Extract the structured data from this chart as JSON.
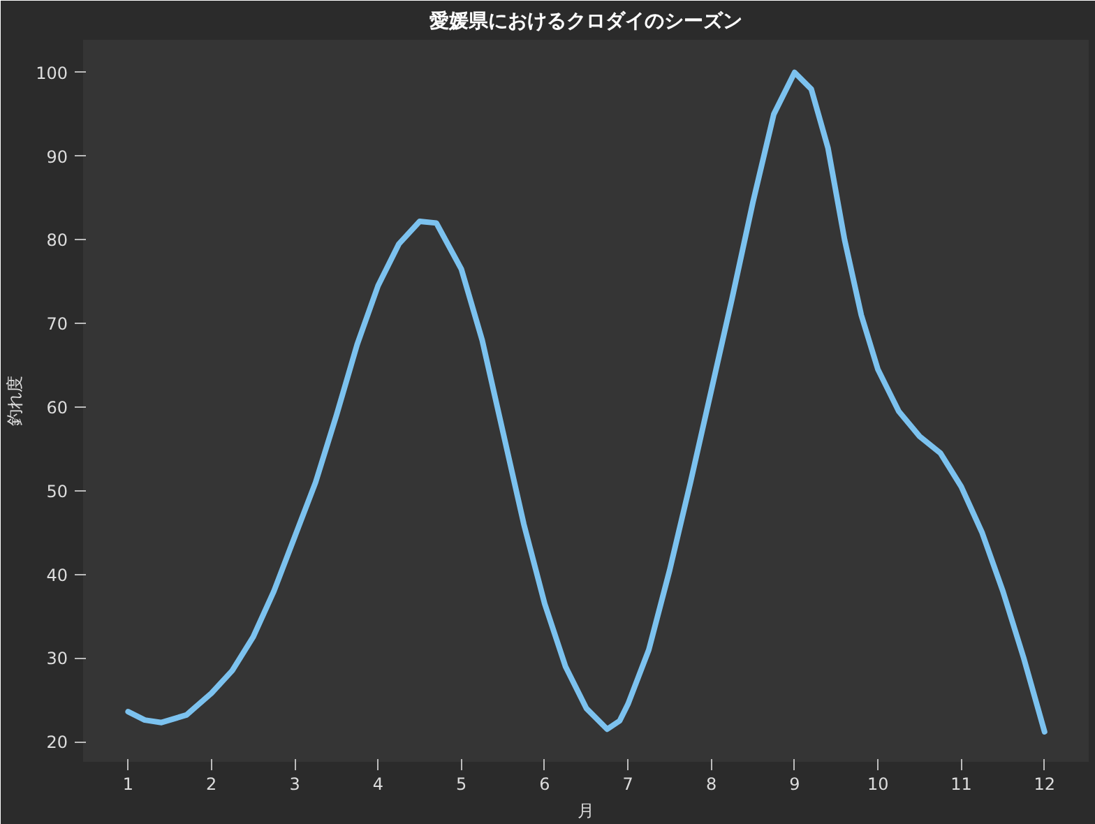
{
  "chart_data": {
    "type": "line",
    "title": "愛媛県におけるクロダイのシーズン",
    "xlabel": "月",
    "ylabel": "釣れ度",
    "x": [
      1,
      1.2,
      1.4,
      1.7,
      2,
      2.25,
      2.5,
      2.75,
      3,
      3.25,
      3.5,
      3.75,
      4,
      4.25,
      4.5,
      4.7,
      5,
      5.25,
      5.5,
      5.75,
      6,
      6.25,
      6.5,
      6.75,
      6.9,
      7,
      7.25,
      7.5,
      7.75,
      8,
      8.25,
      8.5,
      8.75,
      9,
      9.2,
      9.4,
      9.6,
      9.8,
      10,
      10.25,
      10.5,
      10.75,
      11,
      11.25,
      11.5,
      11.75,
      12
    ],
    "series": [
      {
        "color": "#7cc2ef",
        "values": [
          23.6,
          22.6,
          22.3,
          23.2,
          25.8,
          28.5,
          32.5,
          38,
          44.5,
          51,
          59,
          67.5,
          74.5,
          79.5,
          82.2,
          82,
          76.5,
          68,
          57,
          46,
          36.5,
          29,
          24,
          21.5,
          22.5,
          24.5,
          31,
          40.5,
          51,
          62,
          73,
          84.5,
          95,
          100,
          98,
          91,
          80,
          71,
          64.5,
          59.5,
          56.5,
          54.5,
          50.5,
          45,
          38,
          30,
          21.2
        ]
      }
    ],
    "xlim": [
      0.46,
      12.53
    ],
    "ylim": [
      17.6,
      103.9
    ],
    "xticks": [
      1,
      2,
      3,
      4,
      5,
      6,
      7,
      8,
      9,
      10,
      11,
      12
    ],
    "yticks": [
      20,
      30,
      40,
      50,
      60,
      70,
      80,
      90,
      100
    ],
    "grid": false,
    "line_style": "solid",
    "marker": "none"
  }
}
